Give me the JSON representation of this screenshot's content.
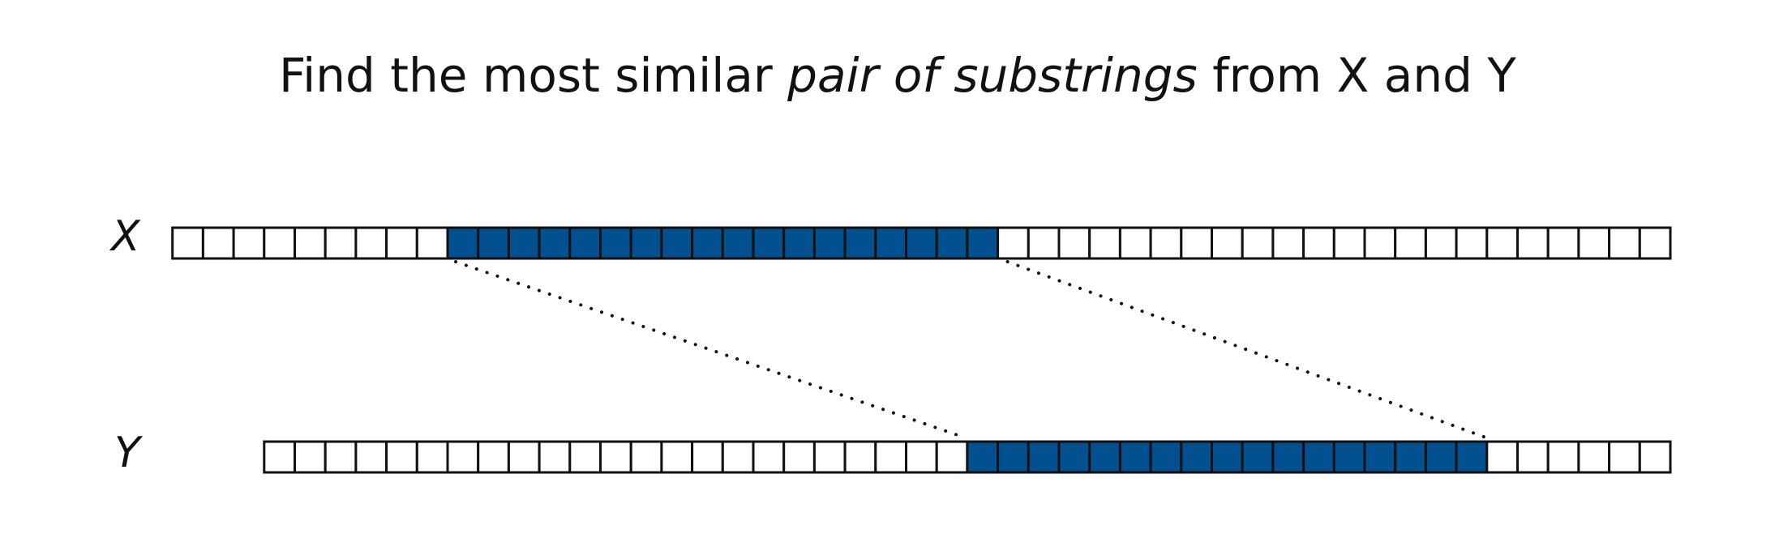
{
  "title": {
    "prefix": "Find the most similar ",
    "emphasis": "pair of substrings",
    "suffix": " from X and Y"
  },
  "strings": {
    "x": {
      "label": "X",
      "length": 49,
      "highlight_start": 9,
      "highlight_end": 26
    },
    "y": {
      "label": "Y",
      "length": 46,
      "highlight_start": 23,
      "highlight_end": 39
    }
  },
  "colors": {
    "highlight": "#02508f",
    "empty": "#ffffff",
    "border": "#111111",
    "connector": "#111111"
  }
}
